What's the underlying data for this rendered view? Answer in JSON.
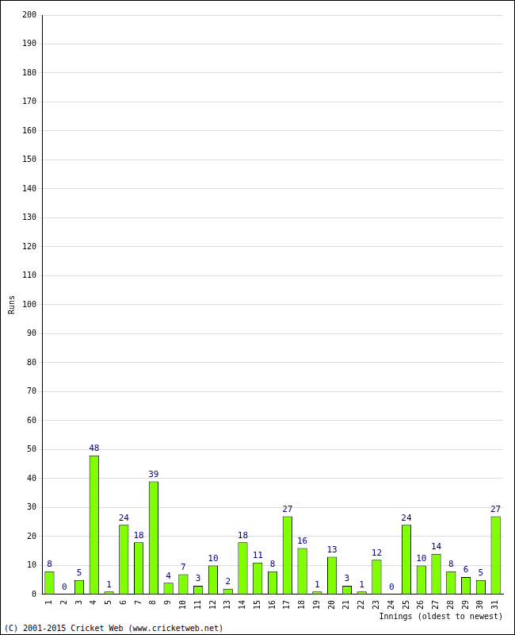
{
  "chart_data": {
    "type": "bar",
    "categories": [
      "1",
      "2",
      "3",
      "4",
      "5",
      "6",
      "7",
      "8",
      "9",
      "10",
      "11",
      "12",
      "13",
      "14",
      "15",
      "16",
      "17",
      "18",
      "19",
      "20",
      "21",
      "22",
      "23",
      "24",
      "25",
      "26",
      "27",
      "28",
      "29",
      "30",
      "31"
    ],
    "values": [
      8,
      0,
      5,
      48,
      1,
      24,
      18,
      39,
      4,
      7,
      3,
      10,
      2,
      18,
      11,
      8,
      27,
      16,
      1,
      13,
      3,
      1,
      12,
      0,
      24,
      10,
      14,
      8,
      6,
      5,
      27
    ],
    "color": "#80ff00",
    "x_label": "Innings (oldest to newest)",
    "y_label": "Runs",
    "annotations": [
      "(C) 2001-2015 Cricket Web (www.cricketweb.net)"
    ],
    "ylim": [
      0,
      200
    ],
    "yticks": [
      0,
      10,
      20,
      30,
      40,
      50,
      60,
      70,
      80,
      90,
      100,
      110,
      120,
      130,
      140,
      150,
      160,
      170,
      180,
      190,
      200
    ],
    "grid": true,
    "data_labels": true
  }
}
